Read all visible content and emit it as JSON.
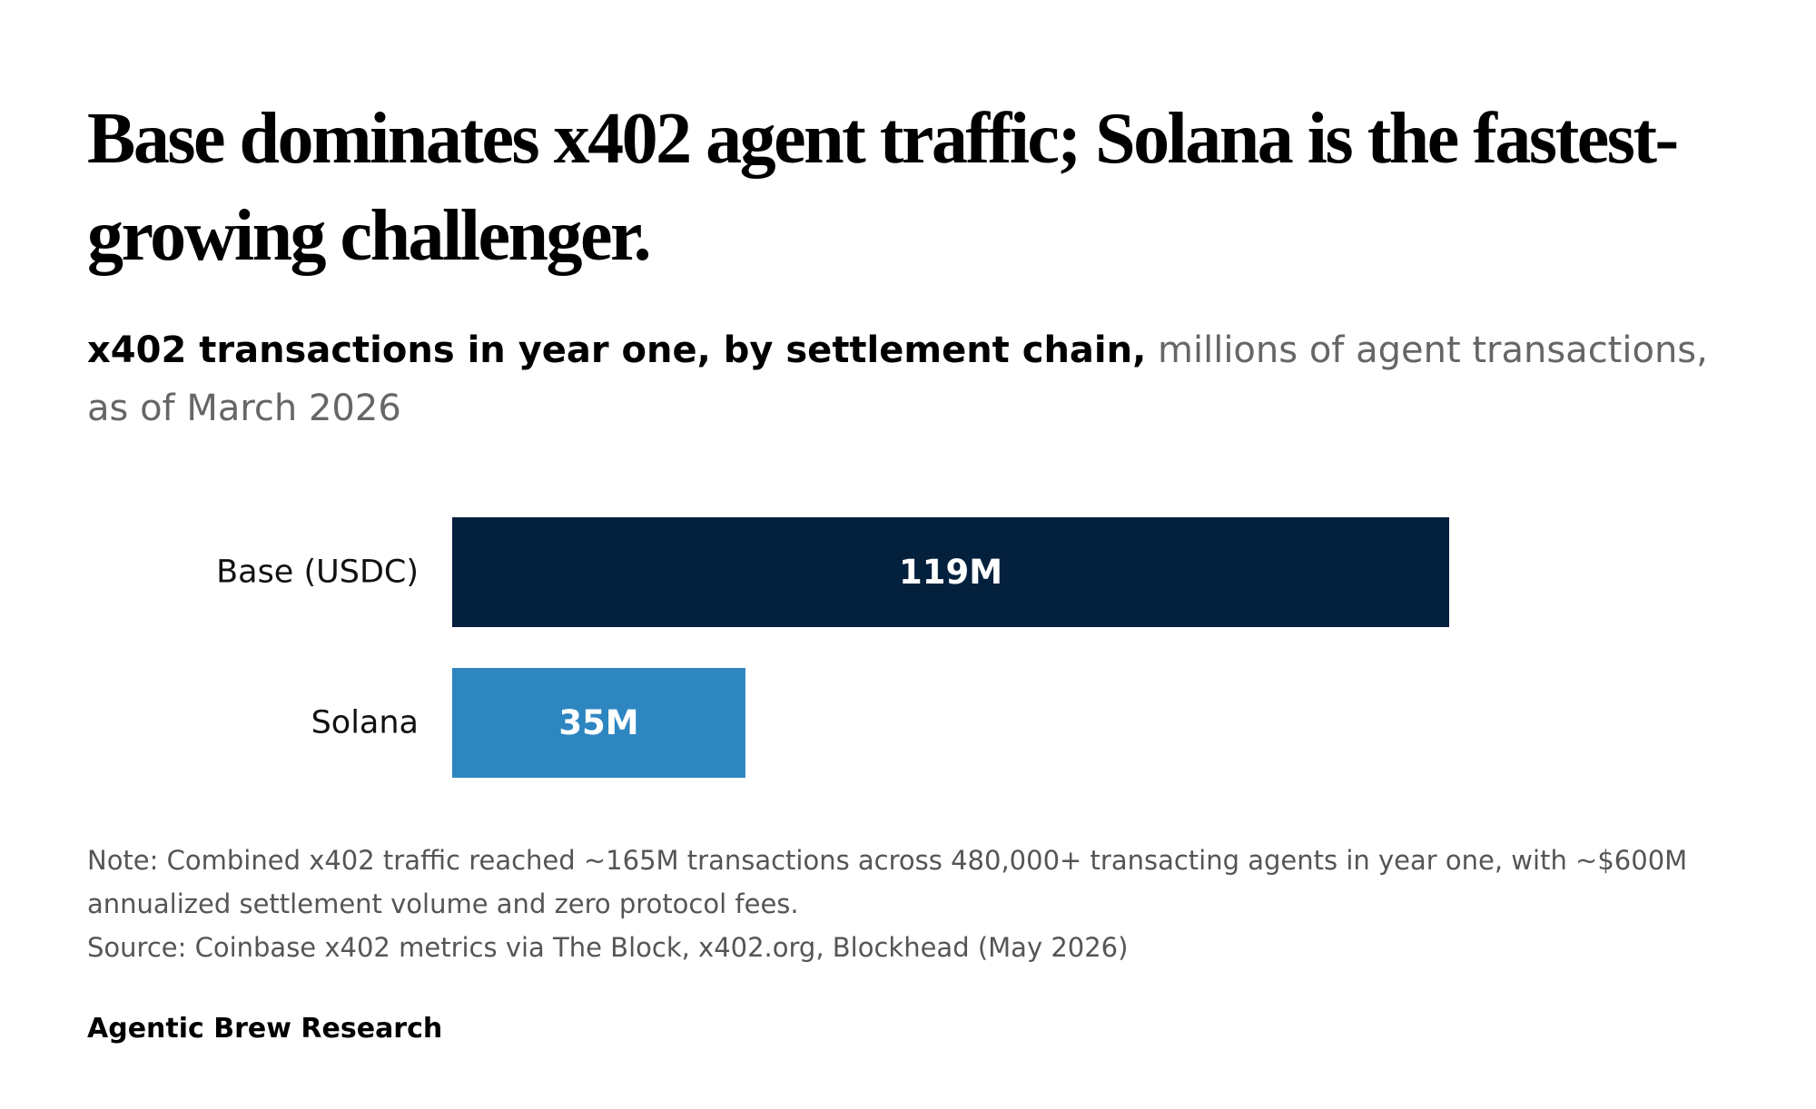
{
  "headline": "Base dominates x402 agent traffic; Solana is the fastest-growing challenger.",
  "subtitle": {
    "lead": "x402 transactions in year one, by settlement chain,",
    "detail": "millions of agent transactions, as of March 2026"
  },
  "chart_data": {
    "type": "bar",
    "orientation": "horizontal",
    "categories": [
      "Base (USDC)",
      "Solana"
    ],
    "values": [
      119,
      35
    ],
    "value_labels": [
      "119M",
      "35M"
    ],
    "colors": [
      "#03203d",
      "#2e86c1"
    ],
    "xlim": [
      0,
      119
    ],
    "grid": false,
    "legend": "none"
  },
  "note": "Note: Combined x402 traffic reached ~165M transactions across 480,000+ transacting agents in year one, with ~$600M annualized settlement volume and zero protocol fees.",
  "source": "Source: Coinbase x402 metrics via The Block, x402.org, Blockhead (May 2026)",
  "brand": "Agentic Brew Research"
}
